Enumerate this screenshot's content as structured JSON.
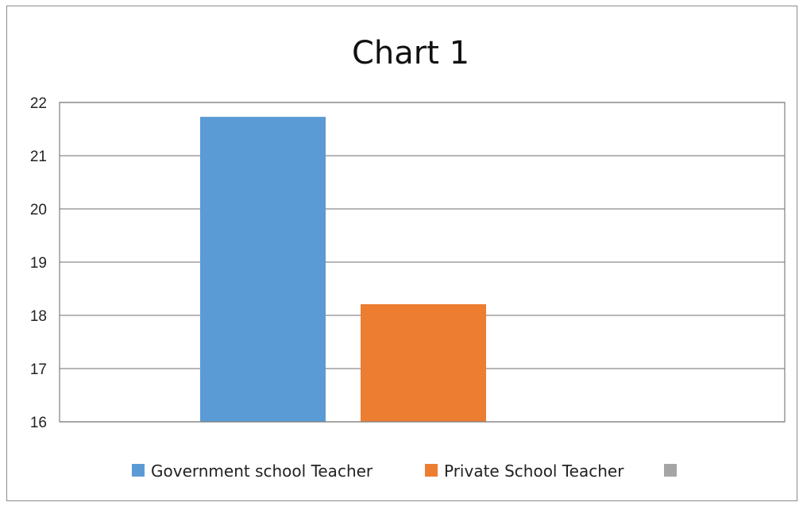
{
  "chart_data": {
    "type": "bar",
    "title": "Chart 1",
    "xlabel": "",
    "ylabel": "",
    "ylim": [
      16,
      22
    ],
    "yticks": [
      16,
      17,
      18,
      19,
      20,
      21,
      22
    ],
    "grid": true,
    "legend": "bottom",
    "series": [
      {
        "name": "Government school Teacher",
        "value": 21.73,
        "color": "#5B9BD5"
      },
      {
        "name": "Private School Teacher",
        "value": 18.21,
        "color": "#ED7D31"
      },
      {
        "name": "",
        "value": null,
        "color": "#A5A5A5"
      }
    ]
  }
}
